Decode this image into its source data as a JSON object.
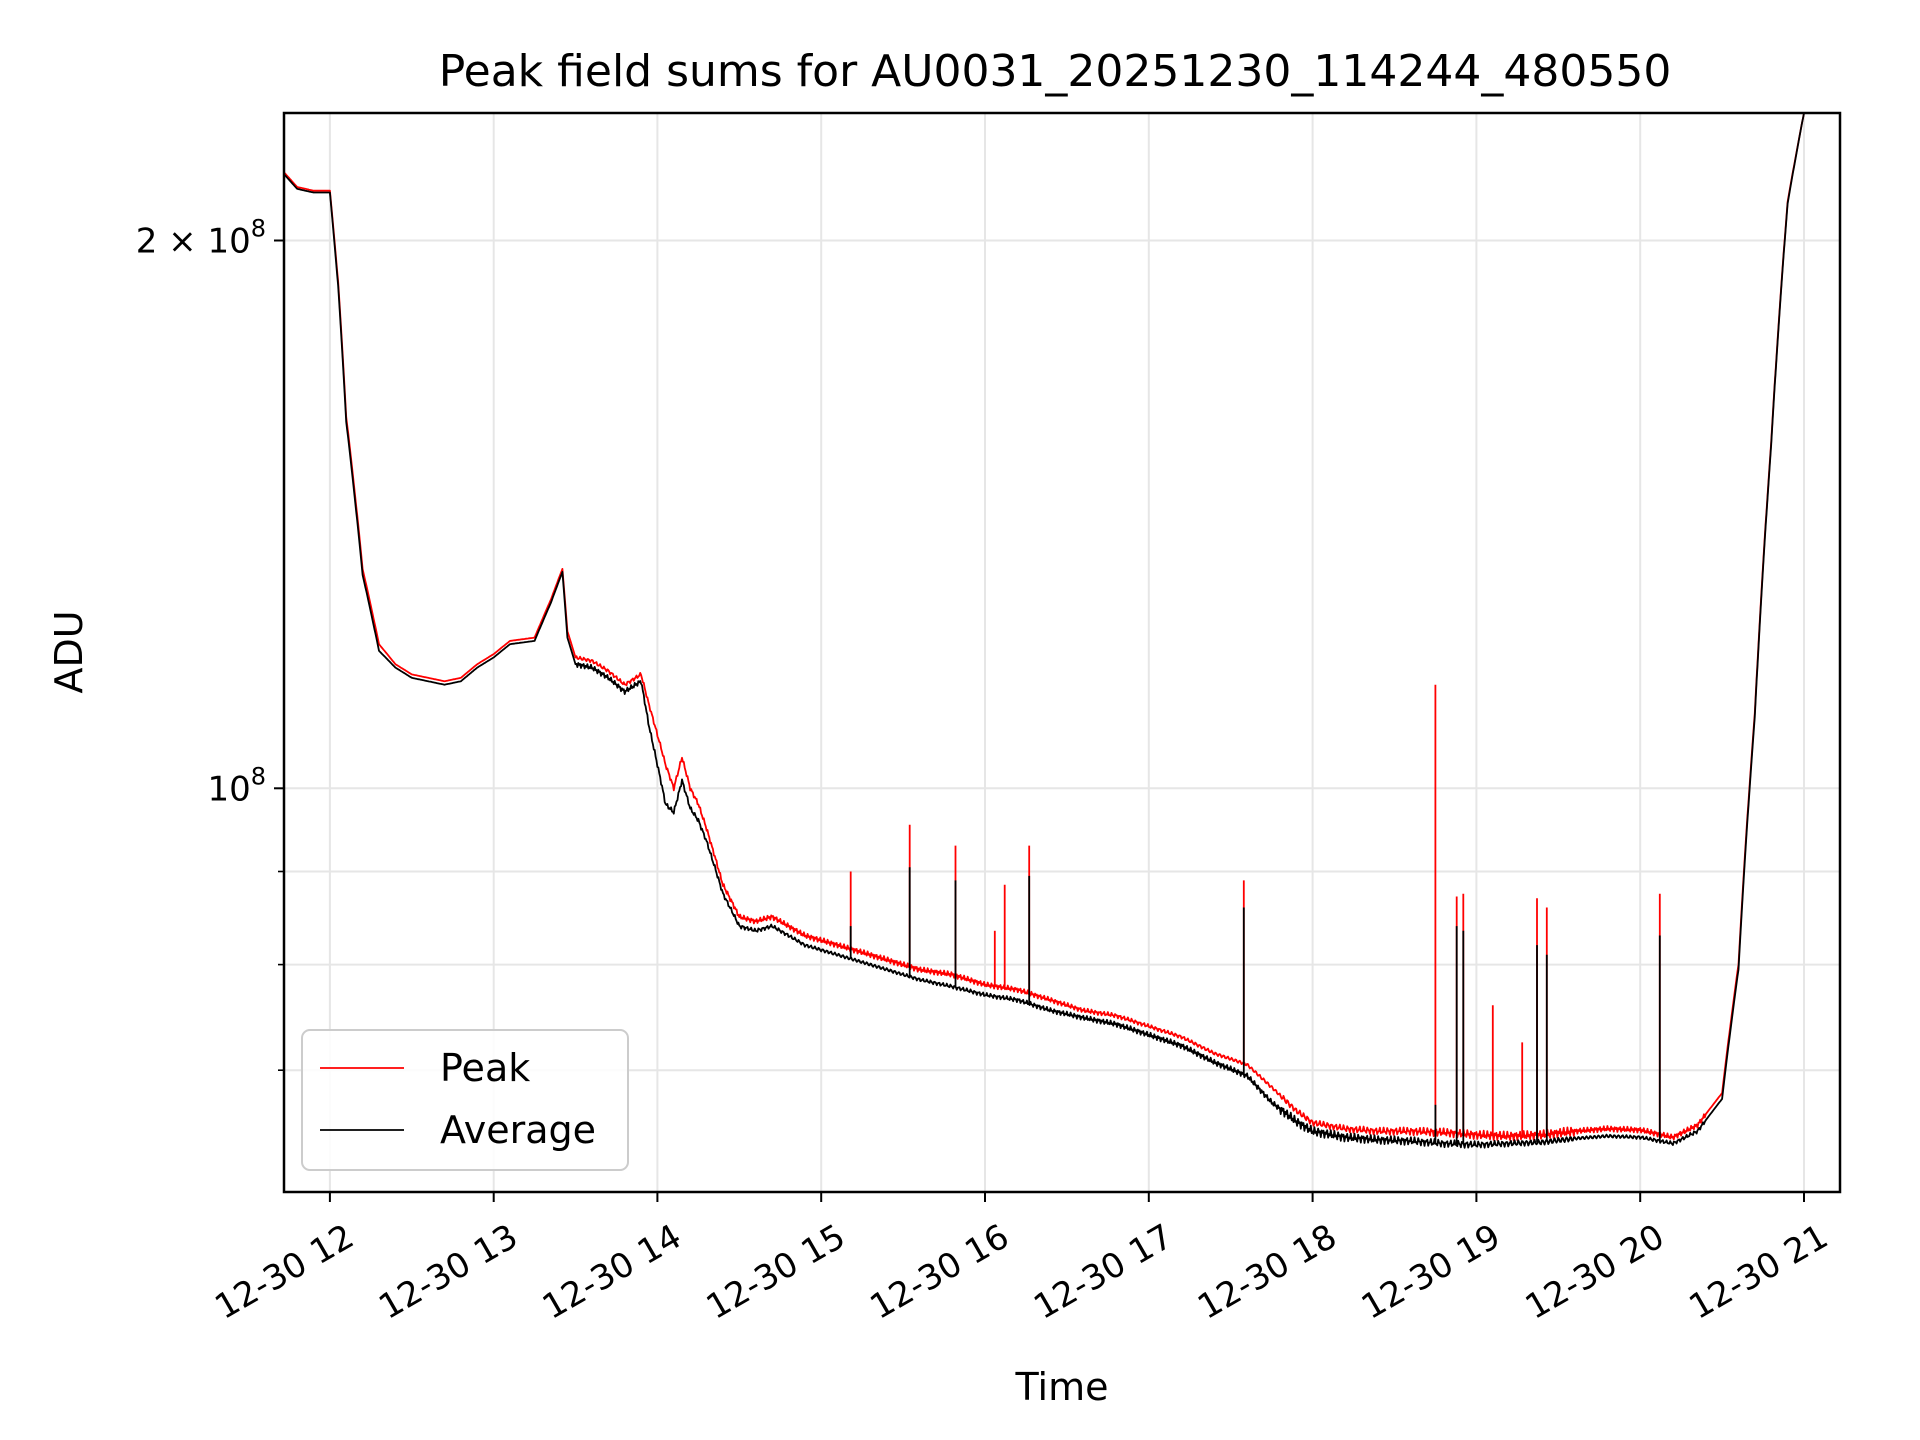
{
  "chart_data": {
    "type": "line",
    "title": "Peak field sums for AU0031_20251230_114244_480550",
    "xlabel": "Time",
    "ylabel": "ADU",
    "x_unit": "hour of day on 2025-12-30",
    "xlim": [
      11.72,
      21.22
    ],
    "ylim": [
      60000000,
      235000000
    ],
    "yscale": "log",
    "grid": true,
    "legend_position": "lower-left",
    "x_ticks": [
      {
        "x": 12,
        "label": "12-30 12"
      },
      {
        "x": 13,
        "label": "12-30 13"
      },
      {
        "x": 14,
        "label": "12-30 14"
      },
      {
        "x": 15,
        "label": "12-30 15"
      },
      {
        "x": 16,
        "label": "12-30 16"
      },
      {
        "x": 17,
        "label": "12-30 17"
      },
      {
        "x": 18,
        "label": "12-30 18"
      },
      {
        "x": 19,
        "label": "12-30 19"
      },
      {
        "x": 20,
        "label": "12-30 20"
      },
      {
        "x": 21,
        "label": "12-30 21"
      }
    ],
    "y_major_ticks": [
      {
        "value": 100000000,
        "label_base": "10",
        "label_exp": "8",
        "label_coef": ""
      },
      {
        "value": 200000000,
        "label_base": "10",
        "label_exp": "8",
        "label_coef": "2 × "
      }
    ],
    "y_minor_ticks": [
      70000000,
      80000000,
      90000000
    ],
    "series": [
      {
        "name": "Peak",
        "color": "#ff0000",
        "x": [
          11.72,
          11.8,
          11.9,
          12.0,
          12.05,
          12.1,
          12.2,
          12.3,
          12.4,
          12.5,
          12.6,
          12.7,
          12.8,
          12.9,
          13.0,
          13.1,
          13.25,
          13.35,
          13.42,
          13.45,
          13.5,
          13.6,
          13.7,
          13.8,
          13.9,
          13.95,
          14.05,
          14.1,
          14.15,
          14.2,
          14.25,
          14.3,
          14.4,
          14.5,
          14.6,
          14.7,
          14.8,
          14.9,
          15.0,
          15.2,
          15.4,
          15.6,
          15.8,
          16.0,
          16.2,
          16.4,
          16.6,
          16.8,
          17.0,
          17.2,
          17.4,
          17.6,
          17.75,
          17.9,
          18.0,
          18.2,
          18.4,
          18.6,
          18.8,
          19.0,
          19.2,
          19.4,
          19.6,
          19.8,
          20.0,
          20.2,
          20.35,
          20.5,
          20.6,
          20.7,
          20.8,
          20.9,
          21.0,
          21.22
        ],
        "y": [
          218000000,
          214000000,
          213000000,
          213000000,
          190000000,
          160000000,
          132000000,
          120000000,
          117000000,
          115500000,
          115000000,
          114500000,
          115000000,
          117000000,
          118500000,
          120500000,
          121000000,
          127000000,
          132000000,
          122000000,
          118000000,
          117500000,
          116000000,
          114000000,
          115500000,
          111000000,
          103000000,
          100000000,
          104000000,
          100000000,
          98000000,
          95000000,
          88500000,
          85000000,
          84500000,
          85000000,
          84000000,
          83000000,
          82500000,
          81500000,
          80500000,
          79500000,
          79000000,
          78000000,
          77500000,
          76500000,
          75500000,
          75000000,
          74000000,
          73000000,
          71500000,
          70500000,
          68500000,
          66500000,
          65500000,
          65000000,
          64800000,
          64800000,
          64700000,
          64500000,
          64400000,
          64500000,
          64800000,
          65000000,
          64900000,
          64300000,
          65300000,
          68000000,
          80000000,
          110000000,
          155000000,
          210000000,
          235000000,
          235000000
        ],
        "spikes": [
          {
            "x": 15.18,
            "y": 90000000
          },
          {
            "x": 15.54,
            "y": 95500000
          },
          {
            "x": 15.82,
            "y": 93000000
          },
          {
            "x": 16.06,
            "y": 83500000
          },
          {
            "x": 16.12,
            "y": 88500000
          },
          {
            "x": 16.27,
            "y": 93000000
          },
          {
            "x": 17.58,
            "y": 89000000
          },
          {
            "x": 18.75,
            "y": 114000000
          },
          {
            "x": 18.88,
            "y": 87200000
          },
          {
            "x": 18.92,
            "y": 87500000
          },
          {
            "x": 19.1,
            "y": 76000000
          },
          {
            "x": 19.28,
            "y": 72500000
          },
          {
            "x": 19.37,
            "y": 87000000
          },
          {
            "x": 19.43,
            "y": 86000000
          },
          {
            "x": 20.12,
            "y": 87500000
          }
        ]
      },
      {
        "name": "Average",
        "color": "#000000",
        "x": [
          11.72,
          11.8,
          11.9,
          12.0,
          12.05,
          12.1,
          12.2,
          12.3,
          12.4,
          12.5,
          12.6,
          12.7,
          12.8,
          12.9,
          13.0,
          13.1,
          13.25,
          13.35,
          13.42,
          13.45,
          13.5,
          13.6,
          13.7,
          13.8,
          13.9,
          13.95,
          14.05,
          14.1,
          14.15,
          14.2,
          14.25,
          14.3,
          14.4,
          14.5,
          14.6,
          14.7,
          14.8,
          14.9,
          15.0,
          15.2,
          15.4,
          15.6,
          15.8,
          16.0,
          16.2,
          16.4,
          16.6,
          16.8,
          17.0,
          17.2,
          17.4,
          17.6,
          17.75,
          17.9,
          18.0,
          18.2,
          18.4,
          18.6,
          18.8,
          19.0,
          19.2,
          19.4,
          19.6,
          19.8,
          20.0,
          20.2,
          20.35,
          20.5,
          20.6,
          20.7,
          20.8,
          20.9,
          21.0,
          21.22
        ],
        "y": [
          217500000,
          213500000,
          212500000,
          212500000,
          189000000,
          159000000,
          131000000,
          119000000,
          116500000,
          115000000,
          114500000,
          114000000,
          114500000,
          116500000,
          118000000,
          120000000,
          120500000,
          126500000,
          131500000,
          121000000,
          117000000,
          116500000,
          115000000,
          113000000,
          114500000,
          108000000,
          98000000,
          97000000,
          101000000,
          97500000,
          96000000,
          93500000,
          87500000,
          84000000,
          83500000,
          84000000,
          83000000,
          82000000,
          81500000,
          80500000,
          79500000,
          78500000,
          77800000,
          77000000,
          76500000,
          75500000,
          74800000,
          74200000,
          73200000,
          72200000,
          70700000,
          69500000,
          67200000,
          65600000,
          64800000,
          64300000,
          64100000,
          64000000,
          63800000,
          63700000,
          63800000,
          63900000,
          64200000,
          64400000,
          64300000,
          63800000,
          64800000,
          67500000,
          79500000,
          109500000,
          154500000,
          209500000,
          235000000,
          235000000
        ],
        "spikes": [
          {
            "x": 15.18,
            "y": 84000000
          },
          {
            "x": 15.54,
            "y": 90500000
          },
          {
            "x": 15.82,
            "y": 89000000
          },
          {
            "x": 16.27,
            "y": 89500000
          },
          {
            "x": 17.58,
            "y": 86000000
          },
          {
            "x": 18.75,
            "y": 67000000
          },
          {
            "x": 18.88,
            "y": 84000000
          },
          {
            "x": 18.92,
            "y": 83500000
          },
          {
            "x": 19.37,
            "y": 82000000
          },
          {
            "x": 19.43,
            "y": 81000000
          },
          {
            "x": 20.12,
            "y": 83000000
          }
        ]
      }
    ]
  }
}
